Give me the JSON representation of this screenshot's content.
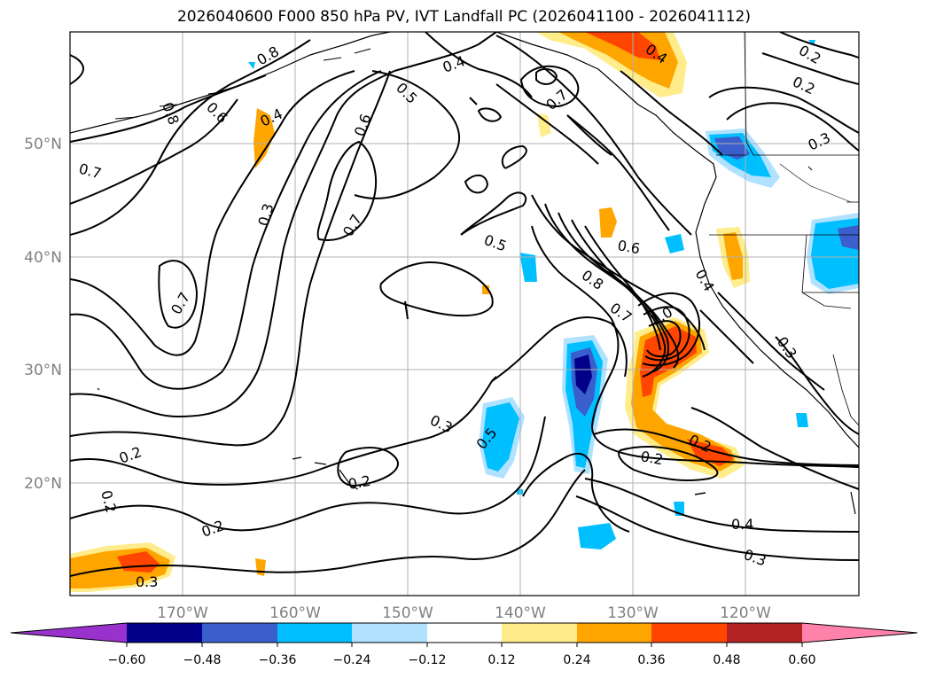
{
  "title": "2026040600 F000 850 hPa PV, IVT Landfall PC (2026041100 - 2026041112)",
  "lat_labels": [
    "50°N",
    "40°N",
    "30°N",
    "20°N"
  ],
  "lon_labels": [
    "170°W",
    "160°W",
    "150°W",
    "140°W",
    "130°W",
    "120°W"
  ],
  "colorbar": {
    "colors": [
      "#9932cc",
      "#00008b",
      "#3a5fcd",
      "#00bfff",
      "#b0e2ff",
      "#ffffff",
      "#ffec8b",
      "#ffa500",
      "#ff4500",
      "#b22222",
      "#ff82ab"
    ],
    "tick_labels": [
      "−0.60",
      "−0.48",
      "−0.36",
      "−0.24",
      "−0.12",
      "0.12",
      "0.24",
      "0.36",
      "0.48",
      "0.60"
    ]
  },
  "contour_labels": [
    "0.8",
    "0.8",
    "0.6",
    "0.4",
    "0.5",
    "0.6",
    "0.4",
    "0.7",
    "0.4",
    "0.2",
    "0.2",
    "0.3",
    "0.7",
    "0.3",
    "0.7",
    "0.5",
    "0.6",
    "0.8",
    "0.7",
    "1.0",
    "0.4",
    "0.7",
    "0.3",
    "0.3",
    "0.2",
    "0.5",
    "0.2",
    "0.2",
    "0.2",
    "0.2",
    "0.4",
    "0.3",
    "0.2",
    "0.3"
  ],
  "colors": {
    "grid": "#b0b0b0",
    "contour": "#000000",
    "axis": "#000000"
  }
}
